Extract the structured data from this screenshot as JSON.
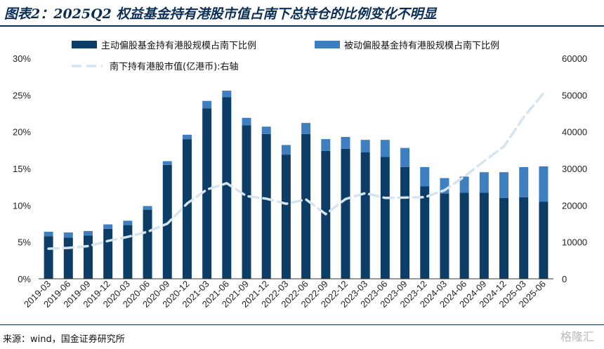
{
  "title": "图表2：2025Q2 权益基金持有港股市值占南下总持仓的比例变化不明显",
  "source": "来源：wind，国金证券研究所",
  "watermark": "格隆汇",
  "chart_data": {
    "type": "bar",
    "stacked": true,
    "categories": [
      "2019-03",
      "2019-06",
      "2019-09",
      "2019-12",
      "2020-03",
      "2020-06",
      "2020-09",
      "2020-12",
      "2021-03",
      "2021-06",
      "2021-09",
      "2021-12",
      "2022-03",
      "2022-06",
      "2022-09",
      "2022-12",
      "2023-03",
      "2023-06",
      "2023-09",
      "2023-12",
      "2024-03",
      "2024-06",
      "2024-09",
      "2024-12",
      "2025-03",
      "2025-06"
    ],
    "series": [
      {
        "name": "主动偏股基金持有港股规模占南下比例",
        "type": "bar",
        "axis": "left",
        "color": "#0b3d66",
        "values": [
          5.8,
          5.6,
          5.9,
          6.8,
          7.3,
          9.4,
          15.5,
          19.0,
          23.2,
          24.7,
          20.9,
          19.7,
          16.9,
          19.7,
          17.4,
          17.7,
          17.2,
          16.6,
          15.2,
          12.6,
          11.6,
          11.7,
          11.7,
          11.0,
          11.1,
          10.5
        ]
      },
      {
        "name": "被动偏股基金持有港股规模占南下比例",
        "type": "bar",
        "axis": "left",
        "color": "#3e7fc1",
        "values": [
          0.6,
          0.7,
          0.6,
          0.6,
          0.6,
          0.5,
          0.5,
          0.6,
          1.0,
          0.9,
          1.0,
          1.0,
          1.3,
          1.5,
          1.6,
          1.6,
          1.7,
          2.3,
          2.6,
          2.6,
          2.1,
          2.2,
          2.8,
          3.5,
          4.1,
          4.8
        ]
      },
      {
        "name": "南下持有港股市值(亿港币):右轴",
        "type": "line",
        "axis": "right",
        "color": "#d6e4f0",
        "values": [
          8200,
          8400,
          8900,
          10300,
          11400,
          12800,
          15000,
          20500,
          24300,
          26000,
          22500,
          21800,
          20400,
          21600,
          17600,
          21700,
          23300,
          22000,
          22100,
          22200,
          24100,
          27800,
          32000,
          36000,
          44000,
          50500
        ]
      }
    ],
    "yleft": {
      "ticks": [
        "0%",
        "5%",
        "10%",
        "15%",
        "20%",
        "25%",
        "30%"
      ],
      "range": [
        0,
        30
      ]
    },
    "yright": {
      "ticks": [
        "0",
        "10000",
        "20000",
        "30000",
        "40000",
        "50000",
        "60000"
      ],
      "range": [
        0,
        60000
      ]
    },
    "legend_position": "top"
  }
}
